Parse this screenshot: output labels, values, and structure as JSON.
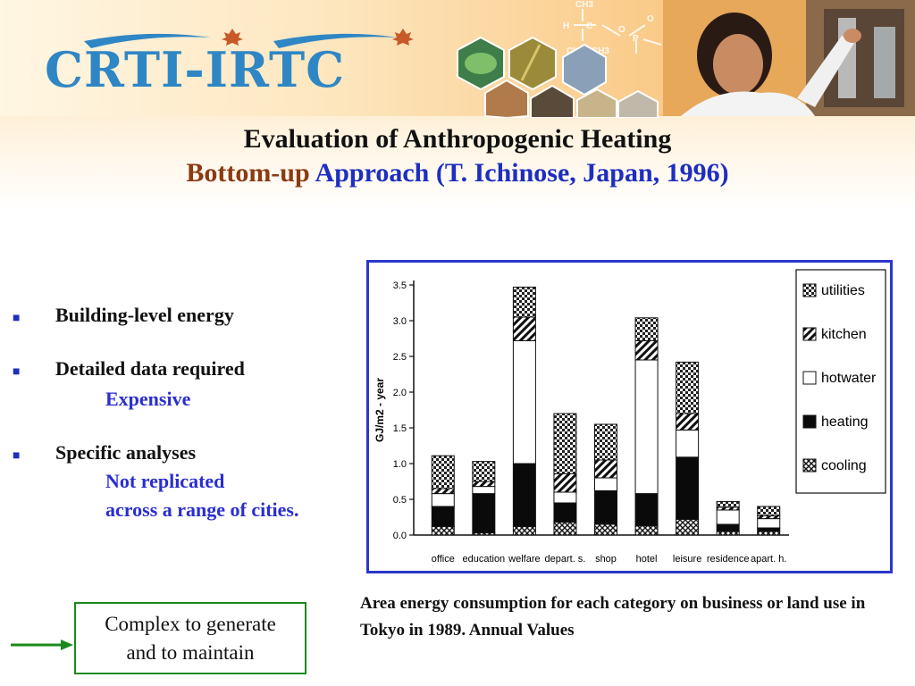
{
  "header": {
    "logo_text": "CRTI-IRTC",
    "chem_labels": [
      "CH3",
      "H",
      "C",
      "O",
      "P",
      "F",
      "CH3",
      "CH3",
      "O"
    ]
  },
  "title": {
    "line1": "Evaluation of Anthropogenic Heating",
    "line2_part1": "Bottom-up",
    "line2_part2": "Approach (T. Ichinose, Japan, 1996)"
  },
  "bullets": [
    {
      "label": "Building-level energy",
      "sub": []
    },
    {
      "label": "Detailed data required",
      "sub": [
        "Expensive"
      ]
    },
    {
      "label": "Specific analyses",
      "sub": [
        "Not replicated",
        "across a range of cities."
      ]
    }
  ],
  "bullet_marker": "■",
  "colors": {
    "title_brown": "#8b3a12",
    "title_blue": "#1e2ec0",
    "chart_border": "#2a36c8",
    "callout_border": "#1a8a1a"
  },
  "chart_data": {
    "type": "bar",
    "stacked": true,
    "ylabel": "GJ/m2 - year",
    "xlabel": "",
    "ylim": [
      0,
      3.5
    ],
    "yticks": [
      "0.0",
      "0.5",
      "1.0",
      "1.5",
      "2.0",
      "2.5",
      "3.0",
      "3.5"
    ],
    "categories": [
      "office",
      "education",
      "welfare",
      "depart. s.",
      "shop",
      "hotel",
      "leisure",
      "residence",
      "apart. h."
    ],
    "legend_position": "top-right",
    "legend_order": [
      "utilities",
      "kitchen",
      "hotwater",
      "heating",
      "cooling"
    ],
    "series": [
      {
        "name": "cooling",
        "values": [
          0.12,
          0.03,
          0.12,
          0.18,
          0.15,
          0.13,
          0.22,
          0.05,
          0.05
        ]
      },
      {
        "name": "heating",
        "values": [
          0.28,
          0.55,
          0.88,
          0.27,
          0.47,
          0.45,
          0.87,
          0.1,
          0.05
        ]
      },
      {
        "name": "hotwater",
        "values": [
          0.18,
          0.1,
          1.72,
          0.15,
          0.18,
          1.87,
          0.38,
          0.2,
          0.13
        ]
      },
      {
        "name": "kitchen",
        "values": [
          0.07,
          0.07,
          0.33,
          0.26,
          0.25,
          0.27,
          0.23,
          0.04,
          0.04
        ]
      },
      {
        "name": "utilities",
        "values": [
          0.46,
          0.28,
          0.42,
          0.84,
          0.5,
          0.32,
          0.72,
          0.08,
          0.13
        ]
      }
    ]
  },
  "caption": "Area energy consumption for each category on business or land use in Tokyo in 1989. Annual Values",
  "callout": {
    "line1": "Complex to generate",
    "line2": "and to maintain"
  }
}
